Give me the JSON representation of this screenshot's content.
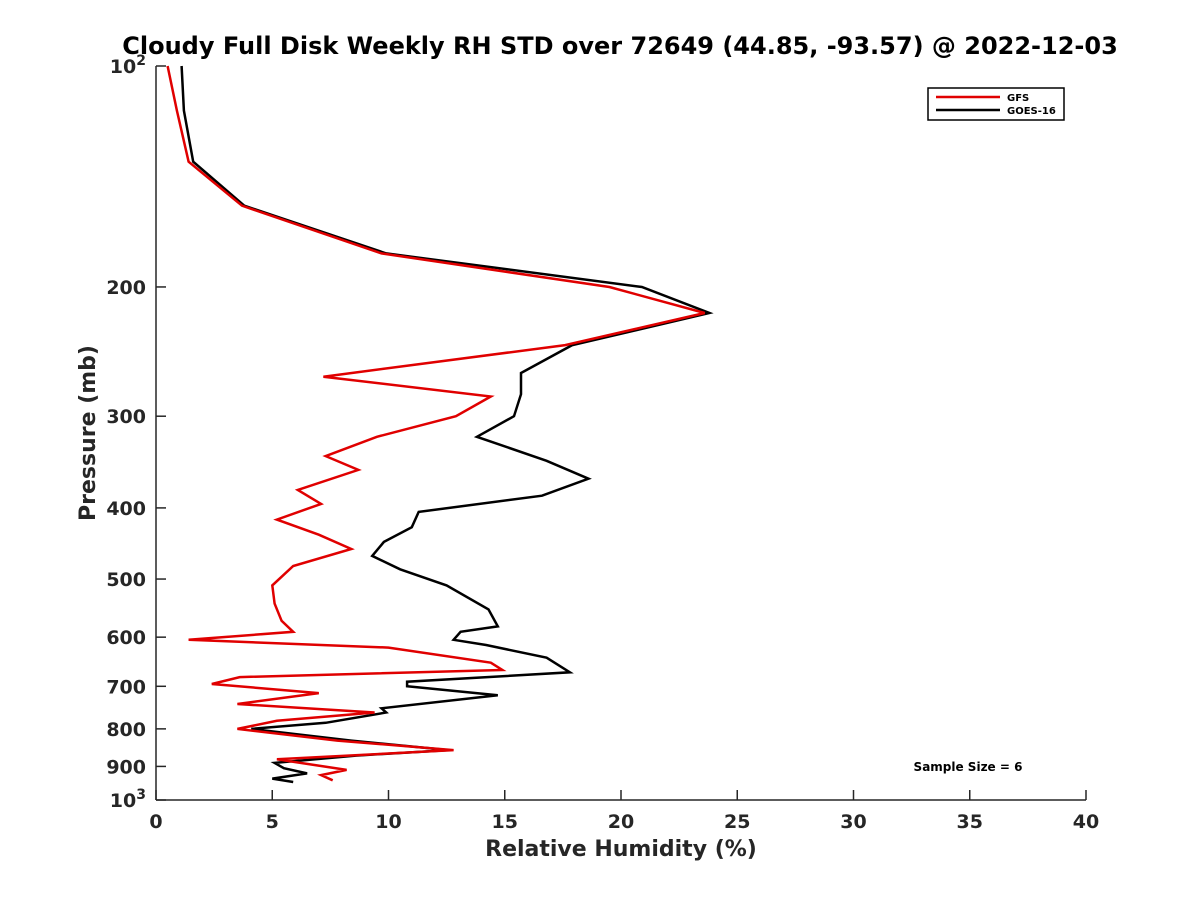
{
  "chart_data": {
    "type": "line",
    "title": "Cloudy Full Disk Weekly RH STD over 72649 (44.85, -93.57) @ 2022-12-03",
    "xlabel": "Relative Humidity (%)",
    "ylabel": "Pressure (mb)",
    "xlim": [
      0,
      40
    ],
    "ylim": [
      100,
      1000
    ],
    "y_scale": "log",
    "y_reversed": true,
    "x_ticks": [
      {
        "value": 0,
        "label": "0"
      },
      {
        "value": 5,
        "label": "5"
      },
      {
        "value": 10,
        "label": "10"
      },
      {
        "value": 15,
        "label": "15"
      },
      {
        "value": 20,
        "label": "20"
      },
      {
        "value": 25,
        "label": "25"
      },
      {
        "value": 30,
        "label": "30"
      },
      {
        "value": 35,
        "label": "35"
      },
      {
        "value": 40,
        "label": "40"
      }
    ],
    "y_ticks": [
      {
        "value": 100,
        "label": "10",
        "sup": "2"
      },
      {
        "value": 200,
        "label": "200"
      },
      {
        "value": 300,
        "label": "300"
      },
      {
        "value": 400,
        "label": "400"
      },
      {
        "value": 500,
        "label": "500"
      },
      {
        "value": 600,
        "label": "600"
      },
      {
        "value": 700,
        "label": "700"
      },
      {
        "value": 800,
        "label": "800"
      },
      {
        "value": 900,
        "label": "900"
      },
      {
        "value": 1000,
        "label": "10",
        "sup": "3"
      }
    ],
    "grid": false,
    "legend_position": "top-right",
    "annotation": "Sample Size = 6",
    "series": [
      {
        "name": "GFS",
        "color": "#e00000",
        "points": [
          [
            0.5,
            100
          ],
          [
            0.9,
            115
          ],
          [
            1.4,
            135
          ],
          [
            3.7,
            155
          ],
          [
            9.7,
            180
          ],
          [
            19.5,
            200
          ],
          [
            23.6,
            217
          ],
          [
            17.6,
            240
          ],
          [
            7.2,
            265
          ],
          [
            14.4,
            282
          ],
          [
            12.9,
            300
          ],
          [
            9.5,
            320
          ],
          [
            7.3,
            340
          ],
          [
            8.7,
            355
          ],
          [
            6.1,
            378
          ],
          [
            7.1,
            395
          ],
          [
            5.2,
            415
          ],
          [
            7.0,
            435
          ],
          [
            8.4,
            455
          ],
          [
            5.9,
            480
          ],
          [
            5.0,
            510
          ],
          [
            5.1,
            540
          ],
          [
            5.4,
            570
          ],
          [
            5.9,
            590
          ],
          [
            1.4,
            605
          ],
          [
            10.0,
            620
          ],
          [
            14.4,
            650
          ],
          [
            14.9,
            665
          ],
          [
            3.6,
            680
          ],
          [
            2.4,
            695
          ],
          [
            7.0,
            715
          ],
          [
            3.5,
            740
          ],
          [
            9.4,
            760
          ],
          [
            5.2,
            780
          ],
          [
            3.5,
            800
          ],
          [
            7.8,
            830
          ],
          [
            12.8,
            855
          ],
          [
            5.2,
            880
          ],
          [
            8.2,
            910
          ],
          [
            7.1,
            925
          ],
          [
            7.6,
            940
          ]
        ]
      },
      {
        "name": "GOES-16",
        "color": "#000000",
        "points": [
          [
            1.1,
            100
          ],
          [
            1.2,
            115
          ],
          [
            1.6,
            135
          ],
          [
            3.8,
            155
          ],
          [
            9.9,
            180
          ],
          [
            20.9,
            200
          ],
          [
            23.8,
            217
          ],
          [
            17.9,
            240
          ],
          [
            15.7,
            262
          ],
          [
            15.7,
            280
          ],
          [
            15.4,
            300
          ],
          [
            13.8,
            320
          ],
          [
            16.8,
            345
          ],
          [
            18.6,
            365
          ],
          [
            16.6,
            385
          ],
          [
            11.3,
            405
          ],
          [
            11.0,
            425
          ],
          [
            9.8,
            445
          ],
          [
            9.3,
            465
          ],
          [
            10.5,
            485
          ],
          [
            12.5,
            510
          ],
          [
            14.3,
            550
          ],
          [
            14.7,
            580
          ],
          [
            13.1,
            590
          ],
          [
            12.8,
            605
          ],
          [
            14.2,
            615
          ],
          [
            16.8,
            640
          ],
          [
            17.8,
            670
          ],
          [
            10.8,
            690
          ],
          [
            10.8,
            700
          ],
          [
            14.7,
            720
          ],
          [
            9.7,
            750
          ],
          [
            9.9,
            760
          ],
          [
            7.3,
            785
          ],
          [
            4.1,
            800
          ],
          [
            8.4,
            830
          ],
          [
            12.6,
            855
          ],
          [
            8.6,
            870
          ],
          [
            5.1,
            890
          ],
          [
            5.5,
            905
          ],
          [
            6.5,
            920
          ],
          [
            5.0,
            935
          ],
          [
            5.9,
            945
          ]
        ]
      }
    ]
  }
}
